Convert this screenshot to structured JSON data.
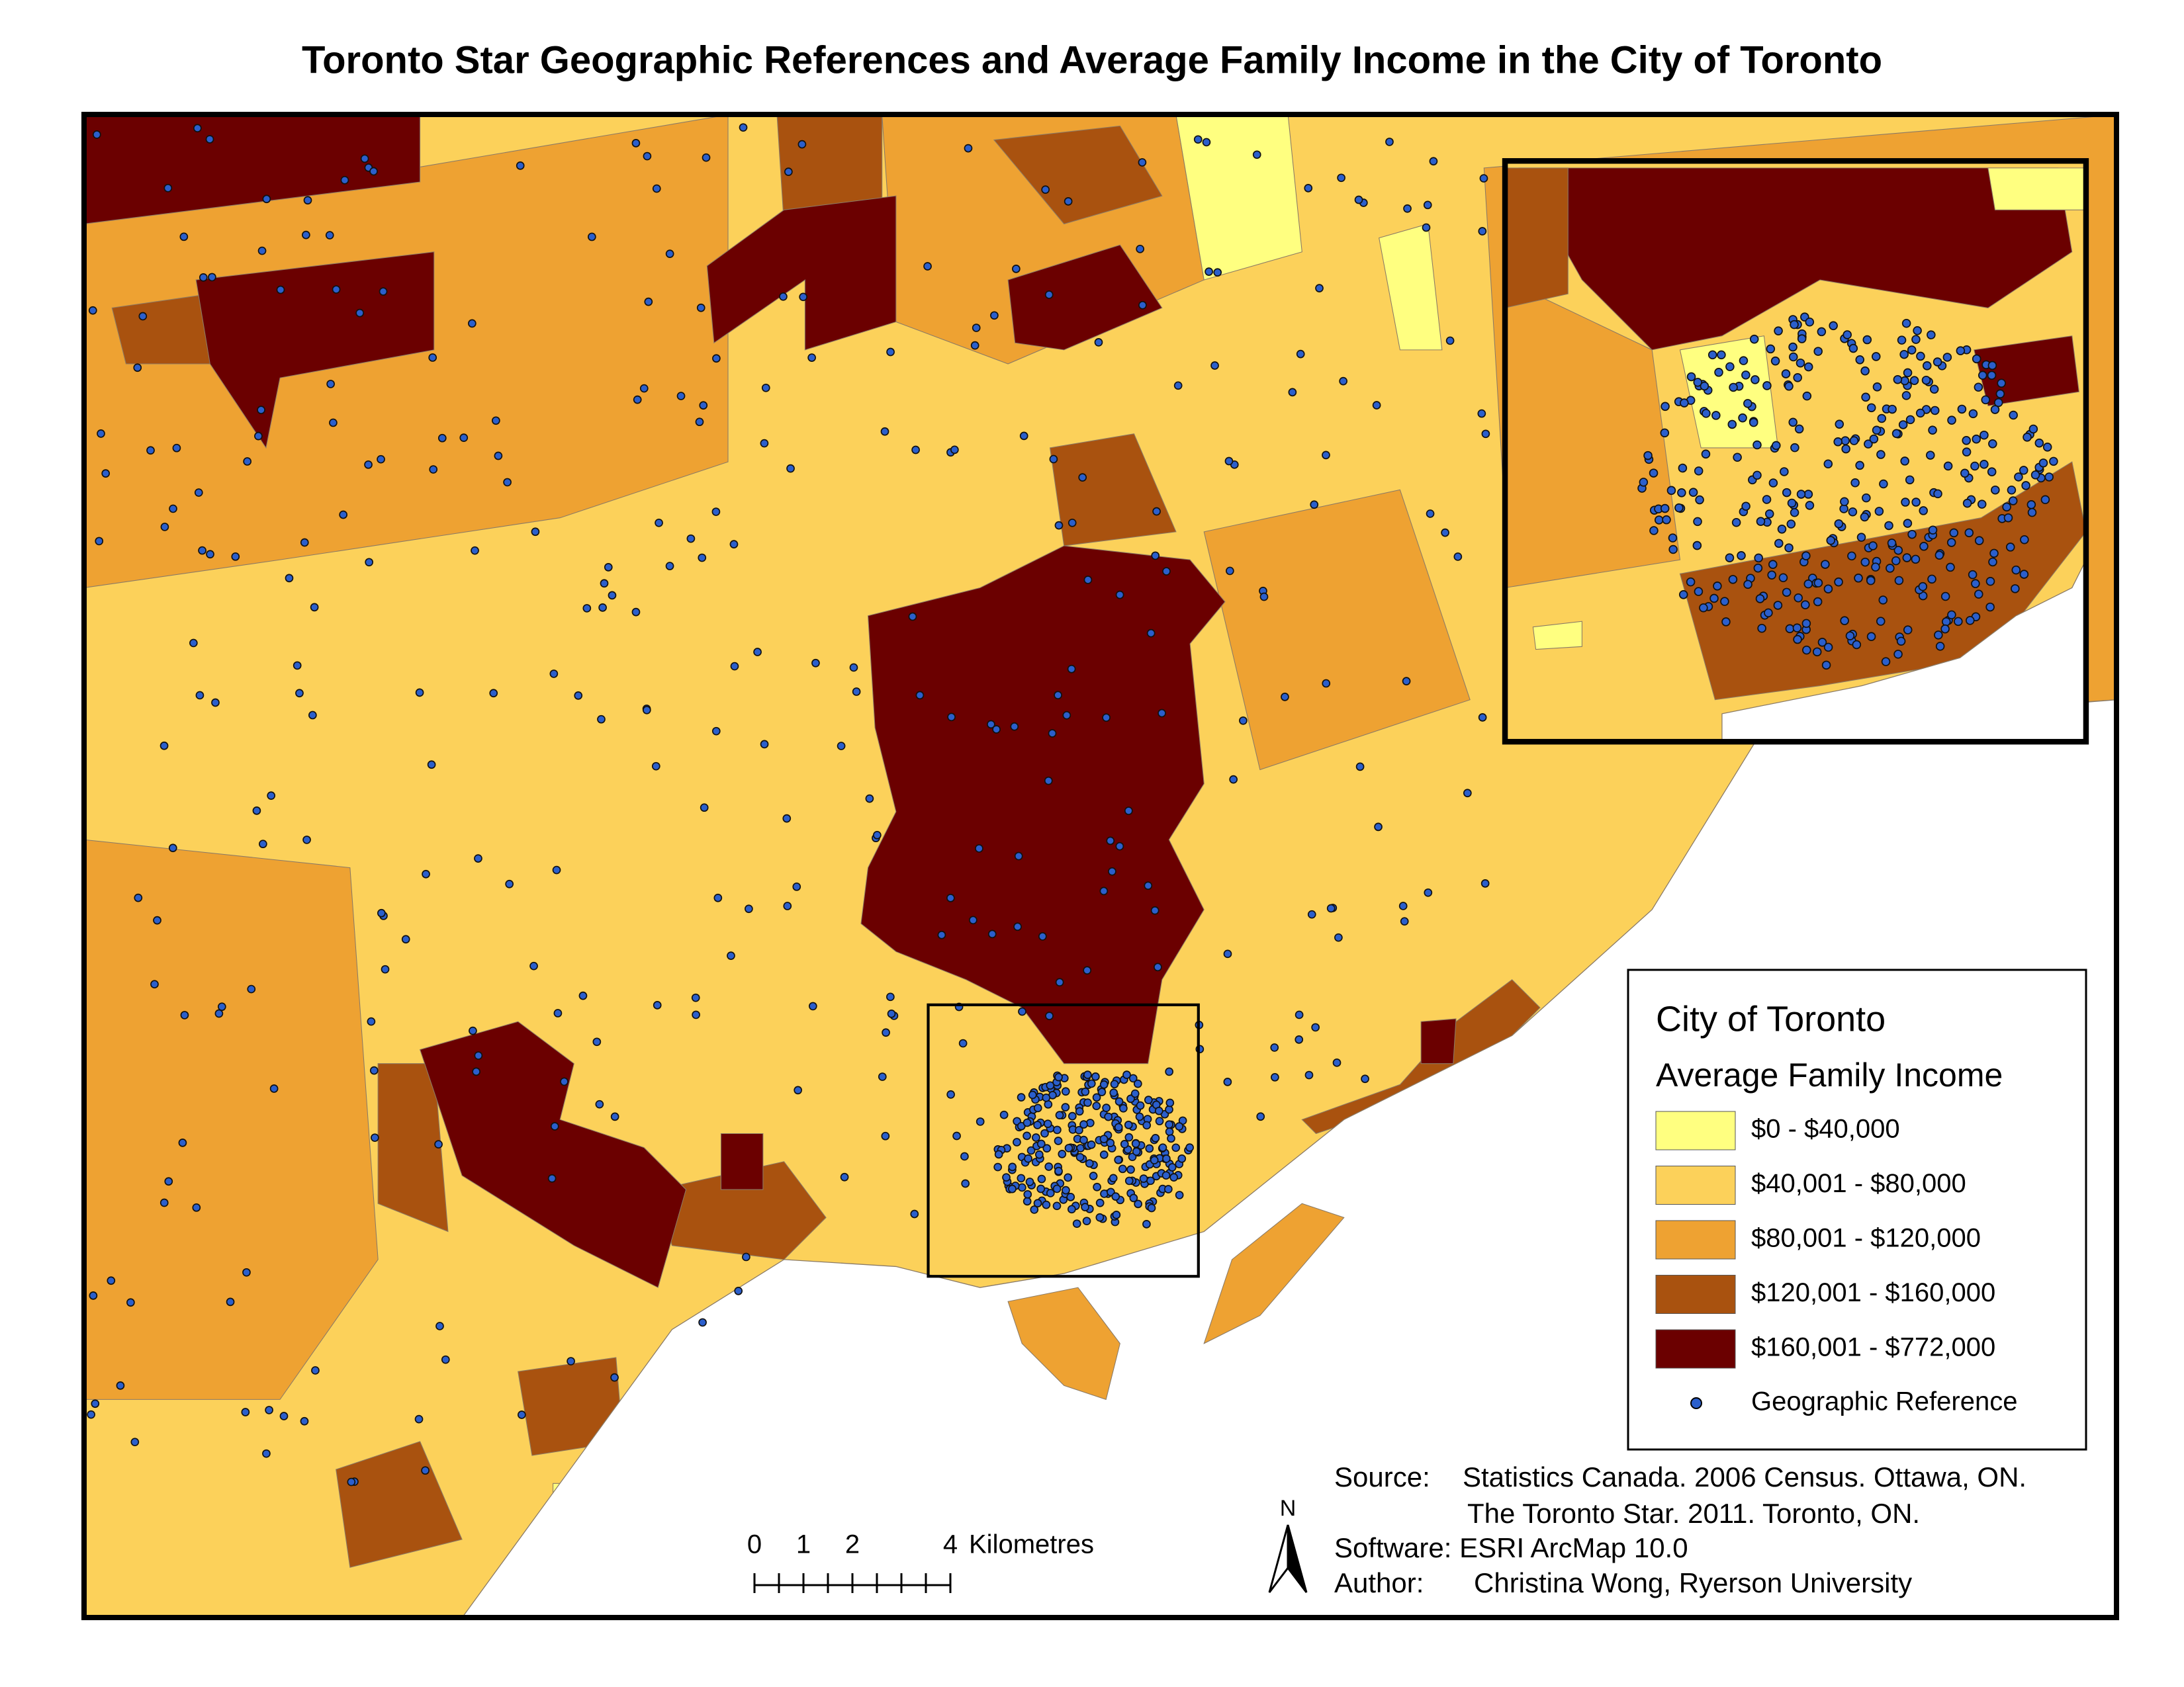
{
  "title": "Toronto Star Geographic References and Average Family Income in the City of Toronto",
  "legend": {
    "title": "City of Toronto",
    "subtitle": "Average Family Income",
    "classes": [
      {
        "label": "$0 - $40,000",
        "color": "#ffff80"
      },
      {
        "label": "$40,001 - $80,000",
        "color": "#fcd15a"
      },
      {
        "label": "$80,001 - $120,000",
        "color": "#eea232"
      },
      {
        "label": "$120,001 - $160,000",
        "color": "#a9520f"
      },
      {
        "label": "$160,001 - $772,000",
        "color": "#6b0000"
      }
    ],
    "reference_label": "Geographic Reference",
    "reference_color": "#2b5fcc"
  },
  "scale_bar": {
    "ticks": [
      0,
      1,
      2,
      4
    ],
    "unit": "Kilometres"
  },
  "north_label": "N",
  "credits": {
    "source_label": "Source:",
    "source_lines": [
      "Statistics Canada. 2006 Census. Ottawa, ON.",
      "The Toronto Star. 2011. Toronto, ON."
    ],
    "software": "Software: ESRI ArcMap 10.0",
    "author_label": "Author:",
    "author": "Christina Wong, Ryerson University"
  }
}
